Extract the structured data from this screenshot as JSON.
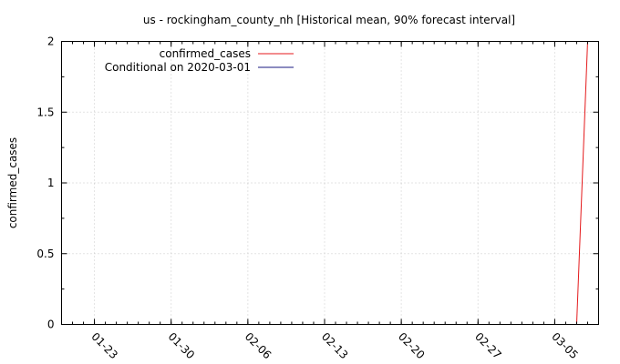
{
  "chart_data": {
    "type": "line",
    "title": "us - rockingham_county_nh [Historical mean, 90% forecast interval]",
    "xlabel": "",
    "ylabel": "confirmed_cases",
    "x_type": "date",
    "xlim": [
      "2020-01-20",
      "2020-03-09"
    ],
    "ylim": [
      0,
      2
    ],
    "x_ticks": [
      {
        "date": "2020-01-23",
        "label": "01-23"
      },
      {
        "date": "2020-01-30",
        "label": "01-30"
      },
      {
        "date": "2020-02-06",
        "label": "02-06"
      },
      {
        "date": "2020-02-13",
        "label": "02-13"
      },
      {
        "date": "2020-02-20",
        "label": "02-20"
      },
      {
        "date": "2020-02-27",
        "label": "02-27"
      },
      {
        "date": "2020-03-05",
        "label": "03-05"
      }
    ],
    "y_ticks": [
      {
        "value": 0,
        "label": "0"
      },
      {
        "value": 0.5,
        "label": "0.5"
      },
      {
        "value": 1,
        "label": "1"
      },
      {
        "value": 1.5,
        "label": "1.5"
      },
      {
        "value": 2,
        "label": "2"
      }
    ],
    "grid": true,
    "legend_position": "top-left",
    "series": [
      {
        "name": "confirmed_cases",
        "color": "#e41a1c",
        "points": [
          {
            "x": "2020-03-07",
            "y": 0
          },
          {
            "x": "2020-03-08",
            "y": 2
          }
        ]
      },
      {
        "name": "Conditional on 2020-03-01",
        "color": "#1a1a80",
        "points": []
      }
    ]
  }
}
